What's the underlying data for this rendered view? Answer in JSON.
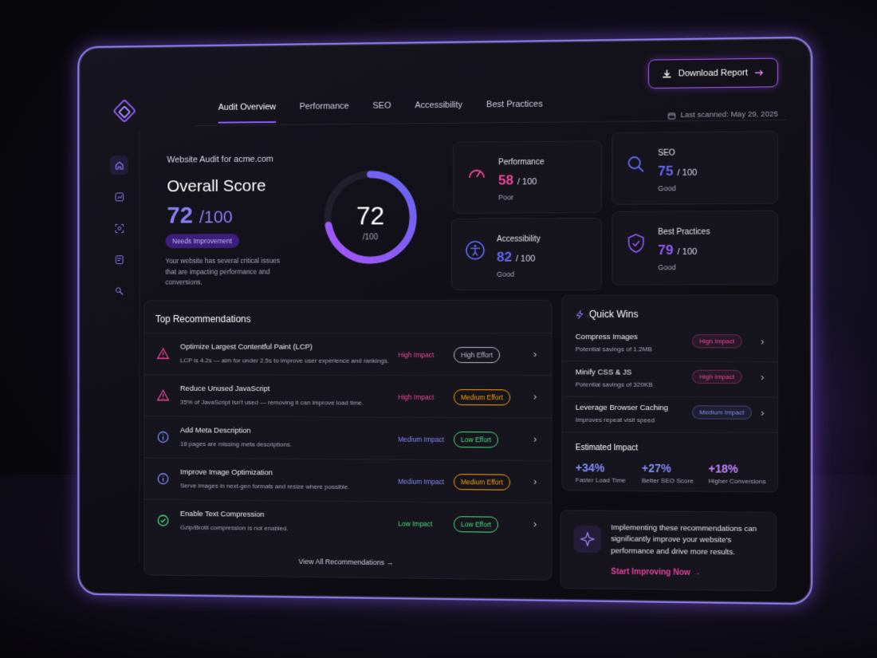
{
  "nav": {
    "tabs": [
      "Audit Overview",
      "Performance",
      "SEO",
      "Accessibility",
      "Best Practices"
    ],
    "active": "Audit Overview",
    "download_label": "Download Report",
    "last_scanned": "Last scanned: May 29, 2025"
  },
  "sidebar": {
    "icons": [
      "home-icon",
      "chart-icon",
      "scan-icon",
      "report-icon",
      "settings-icon"
    ]
  },
  "overview": {
    "site_label": "Website Audit for acme.com",
    "heading": "Overall Score",
    "score": "72",
    "score_suffix": "/100",
    "status_badge": "Needs Improvement",
    "description": "Your website has several critical issues that are impacting performance and conversions.",
    "gauge_value": "72",
    "gauge_of": "/100",
    "gauge_fraction": 0.72
  },
  "metrics": [
    {
      "title": "Performance",
      "value": "58",
      "suffix": "/ 100",
      "status": "Poor",
      "color": "#ec4899",
      "icon": "gauge-icon"
    },
    {
      "title": "SEO",
      "value": "75",
      "suffix": "/ 100",
      "status": "Good",
      "color": "#6366f1",
      "icon": "search-icon"
    },
    {
      "title": "Accessibility",
      "value": "82",
      "suffix": "/ 100",
      "status": "Good",
      "color": "#6366f1",
      "icon": "accessibility-icon"
    },
    {
      "title": "Best Practices",
      "value": "79",
      "suffix": "/ 100",
      "status": "Good",
      "color": "#8b5cf6",
      "icon": "shield-check-icon"
    }
  ],
  "recommendations": {
    "title": "Top Recommendations",
    "items": [
      {
        "name": "Optimize Largest Contentful Paint (LCP)",
        "desc": "LCP is 4.2s — aim for under 2.5s to improve user experience and rankings.",
        "impact": "High Impact",
        "effort": "High Effort",
        "icon": "warning-icon"
      },
      {
        "name": "Reduce Unused JavaScript",
        "desc": "35% of JavaScript isn't used — removing it can improve load time.",
        "impact": "High Impact",
        "effort": "Medium Effort",
        "icon": "warning-icon"
      },
      {
        "name": "Add Meta Description",
        "desc": "18 pages are missing meta descriptions.",
        "impact": "Medium Impact",
        "effort": "Low Effort",
        "icon": "info-icon"
      },
      {
        "name": "Improve Image Optimization",
        "desc": "Serve images in next-gen formats and resize where possible.",
        "impact": "Medium Impact",
        "effort": "Medium Effort",
        "icon": "info-icon"
      },
      {
        "name": "Enable Text Compression",
        "desc": "Gzip/Brotli compression is not enabled.",
        "impact": "Low Impact",
        "effort": "Low Effort",
        "icon": "check-circle-icon"
      }
    ],
    "view_all": "View All Recommendations"
  },
  "colors": {
    "high": "#ec4899",
    "medium_impact": "#818cf8",
    "low": "#4ade80",
    "high_effort": "#bdb8cc",
    "medium_effort": "#f59e0b",
    "low_effort": "#4ade80"
  },
  "quick_wins": {
    "title": "Quick Wins",
    "items": [
      {
        "name": "Compress Images",
        "desc": "Potential savings of 1.2MB",
        "badge": "High Impact"
      },
      {
        "name": "Minify CSS & JS",
        "desc": "Potential savings of 320KB",
        "badge": "High Impact"
      },
      {
        "name": "Leverage Browser Caching",
        "desc": "Improves repeat visit speed",
        "badge": "Medium Impact"
      }
    ],
    "estimated_title": "Estimated Impact",
    "estimated": [
      {
        "value": "+34%",
        "label": "Faster Load Time"
      },
      {
        "value": "+27%",
        "label": "Better SEO Score"
      },
      {
        "value": "+18%",
        "label": "Higher Conversions"
      }
    ]
  },
  "cta": {
    "text": "Implementing these recommendations can significantly improve your website's performance and drive more results.",
    "link": "Start Improving Now"
  }
}
